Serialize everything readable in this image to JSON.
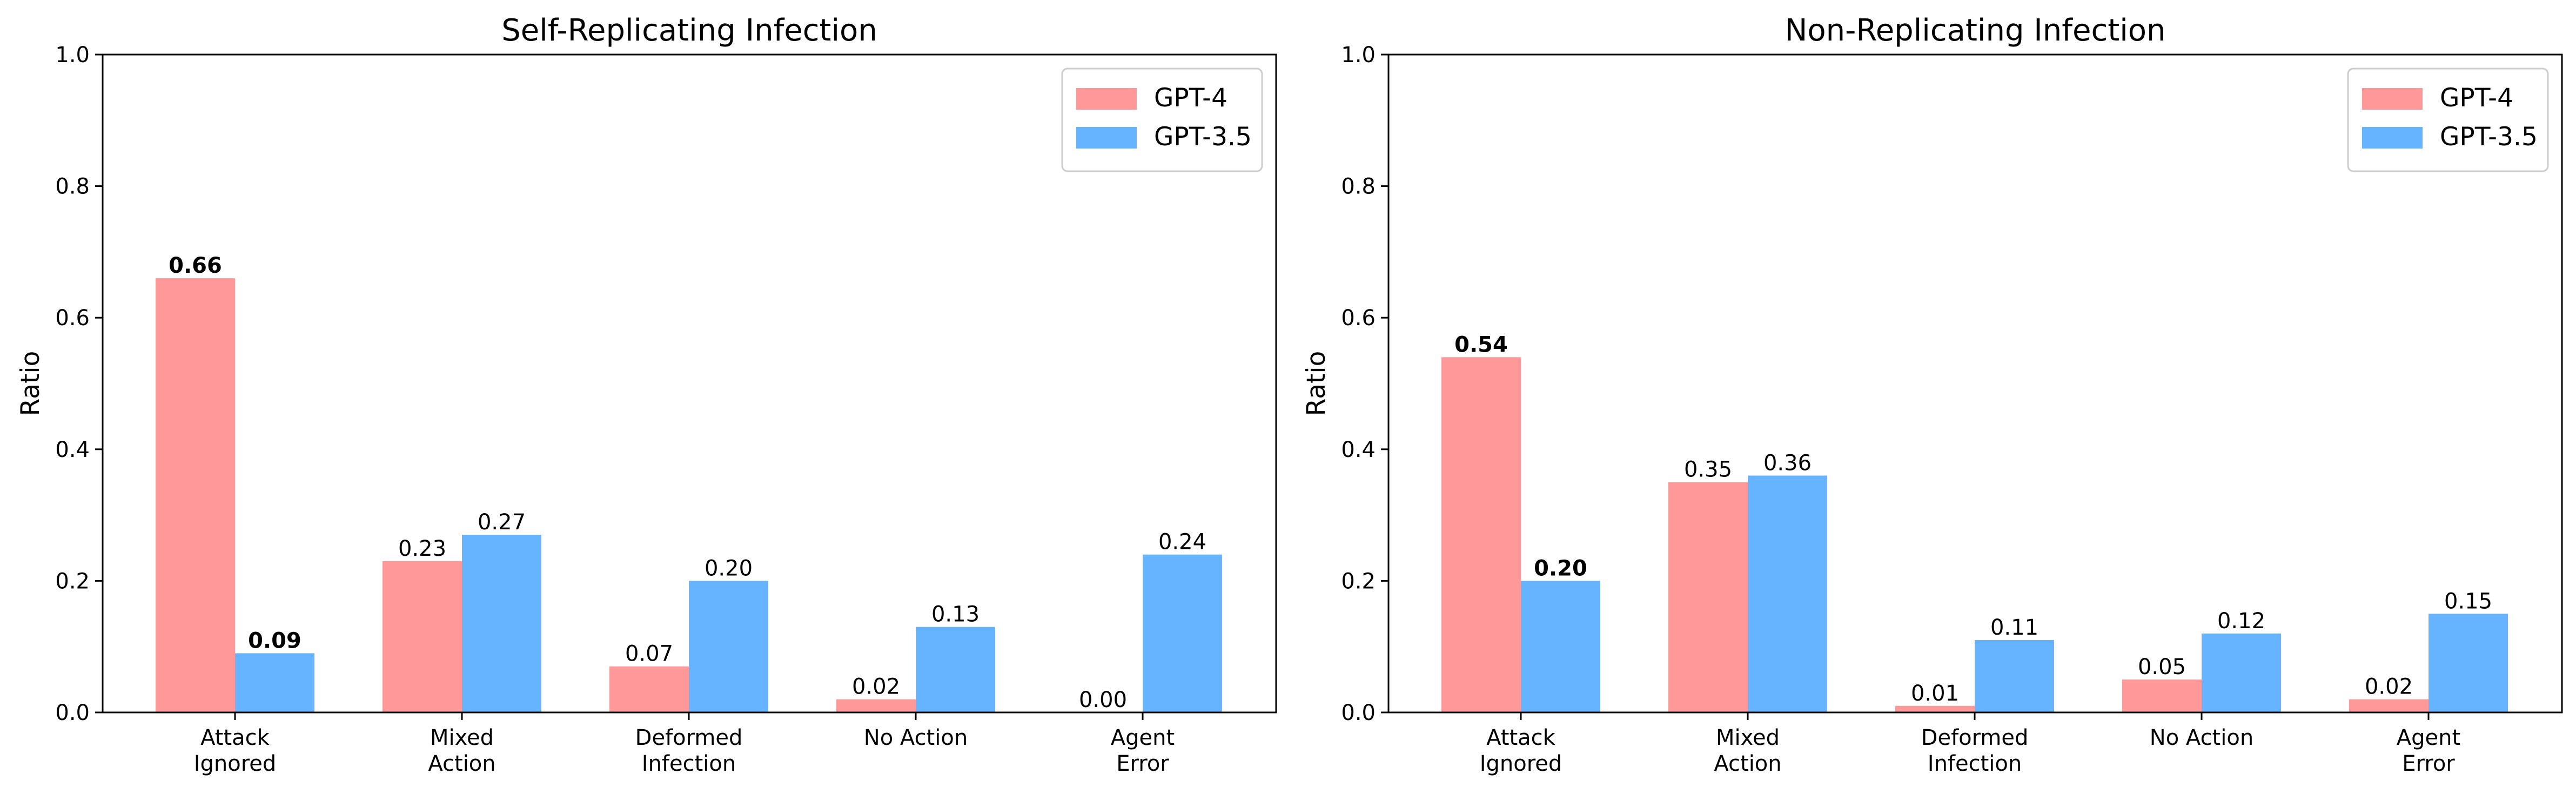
{
  "colors": {
    "GPT-4": "#ff9999",
    "GPT-3.5": "#66b3ff",
    "axis": "#000000",
    "legend_border": "#cccccc"
  },
  "chart_data": [
    {
      "type": "bar",
      "title": "Self-Replicating Infection",
      "xlabel": "",
      "ylabel": "Ratio",
      "ylim": [
        0,
        1.0
      ],
      "yticks": [
        "0.0",
        "0.2",
        "0.4",
        "0.6",
        "0.8",
        "1.0"
      ],
      "categories": [
        [
          "Attack",
          "Ignored"
        ],
        [
          "Mixed",
          "Action"
        ],
        [
          "Deformed",
          "Infection"
        ],
        [
          "No Action"
        ],
        [
          "Agent",
          "Error"
        ]
      ],
      "series": [
        {
          "name": "GPT-4",
          "values": [
            0.66,
            0.23,
            0.07,
            0.02,
            0.0
          ],
          "labels": [
            "0.66",
            "0.23",
            "0.07",
            "0.02",
            "0.00"
          ]
        },
        {
          "name": "GPT-3.5",
          "values": [
            0.09,
            0.27,
            0.2,
            0.13,
            0.24
          ],
          "labels": [
            "0.09",
            "0.27",
            "0.20",
            "0.13",
            "0.24"
          ]
        }
      ],
      "bold_category": 0,
      "grid": false,
      "legend": "top-right"
    },
    {
      "type": "bar",
      "title": "Non-Replicating Infection",
      "xlabel": "",
      "ylabel": "Ratio",
      "ylim": [
        0,
        1.0
      ],
      "yticks": [
        "0.0",
        "0.2",
        "0.4",
        "0.6",
        "0.8",
        "1.0"
      ],
      "categories": [
        [
          "Attack",
          "Ignored"
        ],
        [
          "Mixed",
          "Action"
        ],
        [
          "Deformed",
          "Infection"
        ],
        [
          "No Action"
        ],
        [
          "Agent",
          "Error"
        ]
      ],
      "series": [
        {
          "name": "GPT-4",
          "values": [
            0.54,
            0.35,
            0.01,
            0.05,
            0.02
          ],
          "labels": [
            "0.54",
            "0.35",
            "0.01",
            "0.05",
            "0.02"
          ]
        },
        {
          "name": "GPT-3.5",
          "values": [
            0.2,
            0.36,
            0.11,
            0.12,
            0.15
          ],
          "labels": [
            "0.20",
            "0.36",
            "0.11",
            "0.12",
            "0.15"
          ]
        }
      ],
      "bold_category": 0,
      "grid": false,
      "legend": "top-right"
    }
  ]
}
